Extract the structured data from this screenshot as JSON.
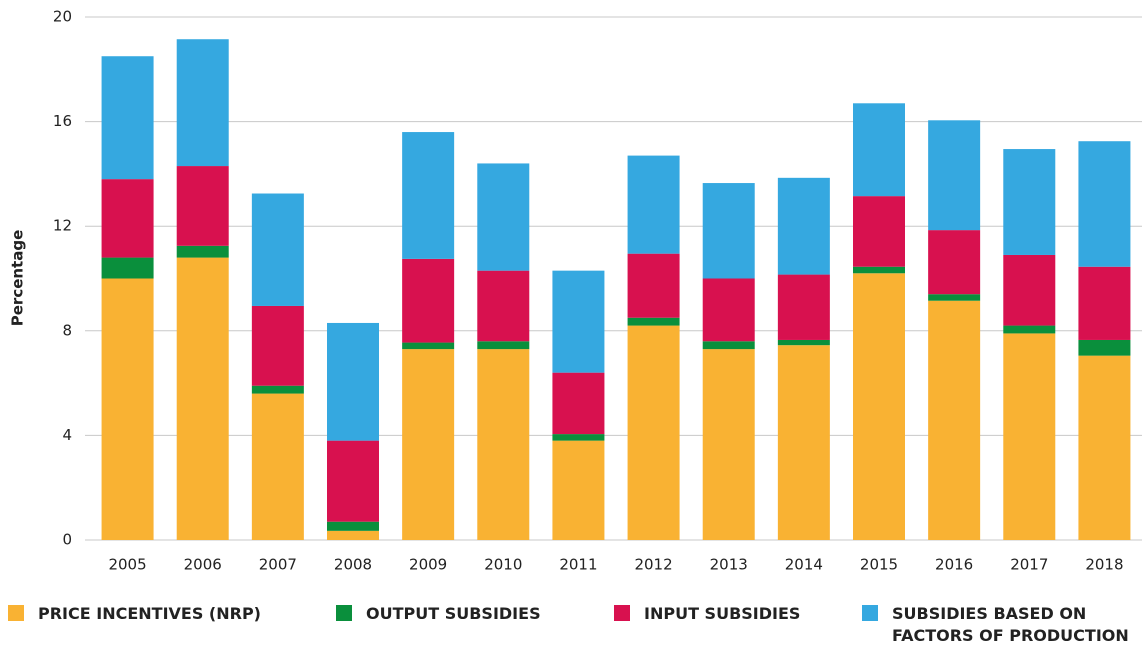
{
  "chart_data": {
    "type": "stacked_bar",
    "y_label": "Percentage",
    "categories": [
      "2005",
      "2006",
      "2007",
      "2008",
      "2009",
      "2010",
      "2011",
      "2012",
      "2013",
      "2014",
      "2015",
      "2016",
      "2017",
      "2018"
    ],
    "series": [
      {
        "name": "PRICE INCENTIVES (NRP)",
        "color": "#f9b233",
        "values": [
          10.0,
          10.8,
          5.6,
          0.35,
          7.3,
          7.3,
          3.8,
          8.2,
          7.3,
          7.45,
          10.2,
          9.15,
          7.9,
          7.05
        ]
      },
      {
        "name": "OUTPUT SUBSIDIES",
        "color": "#0a8f3c",
        "values": [
          0.8,
          0.45,
          0.3,
          0.35,
          0.25,
          0.3,
          0.25,
          0.3,
          0.3,
          0.2,
          0.25,
          0.25,
          0.3,
          0.6
        ]
      },
      {
        "name": "INPUT SUBSIDIES",
        "color": "#d8114f",
        "values": [
          3.0,
          3.05,
          3.05,
          3.1,
          3.2,
          2.7,
          2.35,
          2.45,
          2.4,
          2.5,
          2.7,
          2.45,
          2.7,
          2.8
        ]
      },
      {
        "name": "SUBSIDIES BASED ON FACTORS OF PRODUCTION",
        "color": "#35a8e0",
        "values": [
          4.7,
          4.85,
          4.3,
          4.5,
          4.85,
          4.1,
          3.9,
          3.75,
          3.65,
          3.7,
          3.55,
          4.2,
          4.05,
          4.8
        ]
      }
    ],
    "ylim": [
      0,
      20
    ],
    "yticks": [
      0,
      4,
      8,
      12,
      16,
      20
    ],
    "grid": true
  }
}
